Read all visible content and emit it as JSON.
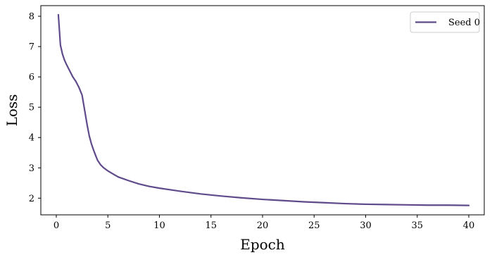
{
  "chart_data": {
    "type": "line",
    "xlabel": "Epoch",
    "ylabel": "Loss",
    "xlim": [
      -1.5,
      41.5
    ],
    "ylim": [
      1.45,
      8.35
    ],
    "xticks": [
      0,
      5,
      10,
      15,
      20,
      25,
      30,
      35,
      40
    ],
    "yticks": [
      2,
      3,
      4,
      5,
      6,
      7,
      8
    ],
    "grid": false,
    "legend_position": "top-right",
    "series": [
      {
        "name": "Seed 0",
        "color": "#5f4b8b",
        "x": [
          0.2,
          0.4,
          0.6,
          0.8,
          1.0,
          1.3,
          1.6,
          1.9,
          2.2,
          2.5,
          2.8,
          3.0,
          3.2,
          3.4,
          3.6,
          3.8,
          4.0,
          4.3,
          4.6,
          5.0,
          5.5,
          6.0,
          7.0,
          8.0,
          9.0,
          10.0,
          12.0,
          14.0,
          16.0,
          18.0,
          20.0,
          22.0,
          24.0,
          26.0,
          28.0,
          30.0,
          32.0,
          34.0,
          36.0,
          38.0,
          40.0
        ],
        "y": [
          8.05,
          7.05,
          6.75,
          6.55,
          6.4,
          6.2,
          6.0,
          5.85,
          5.65,
          5.4,
          4.8,
          4.4,
          4.05,
          3.8,
          3.6,
          3.42,
          3.25,
          3.1,
          3.0,
          2.9,
          2.8,
          2.7,
          2.58,
          2.47,
          2.39,
          2.33,
          2.23,
          2.14,
          2.07,
          2.01,
          1.96,
          1.92,
          1.88,
          1.85,
          1.82,
          1.8,
          1.79,
          1.78,
          1.77,
          1.77,
          1.76
        ]
      }
    ]
  }
}
